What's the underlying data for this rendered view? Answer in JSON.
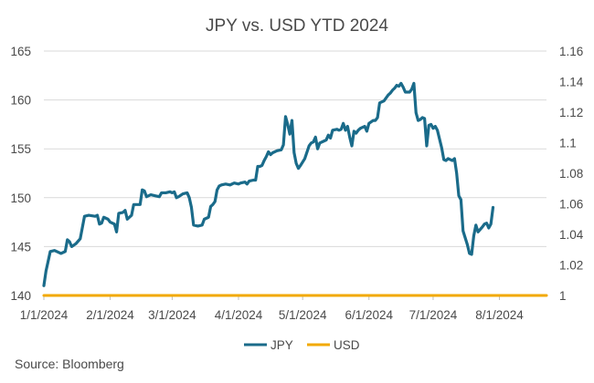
{
  "chart_data": {
    "type": "line",
    "title": "JPY vs. USD YTD 2024",
    "xlabel": "",
    "ylabel": "",
    "x_tick_labels": [
      "1/1/2024",
      "2/1/2024",
      "3/1/2024",
      "4/1/2024",
      "5/1/2024",
      "6/1/2024",
      "7/1/2024",
      "8/1/2024"
    ],
    "y_left_ticks": [
      "140",
      "145",
      "150",
      "155",
      "160",
      "165"
    ],
    "y_right_ticks": [
      "1",
      "1.02",
      "1.04",
      "1.06",
      "1.08",
      "1.1",
      "1.12",
      "1.14",
      "1.16"
    ],
    "ylim_left": [
      140,
      165
    ],
    "ylim_right": [
      1.0,
      1.16
    ],
    "x_days_range": [
      0,
      235
    ],
    "legend": [
      {
        "name": "JPY",
        "color": "#1a6b8a"
      },
      {
        "name": "USD",
        "color": "#f2a900"
      }
    ],
    "source": "Source: Bloomberg",
    "series": [
      {
        "name": "JPY",
        "axis": "left",
        "color": "#1a6b8a",
        "points": [
          [
            0,
            141.0
          ],
          [
            1,
            142.5
          ],
          [
            2,
            143.5
          ],
          [
            3,
            144.5
          ],
          [
            5,
            144.6
          ],
          [
            8,
            144.3
          ],
          [
            10,
            144.5
          ],
          [
            11,
            145.7
          ],
          [
            12,
            145.5
          ],
          [
            13,
            145.0
          ],
          [
            15,
            145.3
          ],
          [
            17,
            145.8
          ],
          [
            19,
            148.1
          ],
          [
            21,
            148.2
          ],
          [
            24,
            148.1
          ],
          [
            25,
            148.2
          ],
          [
            26,
            147.3
          ],
          [
            27,
            147.4
          ],
          [
            28,
            148.0
          ],
          [
            30,
            147.8
          ],
          [
            31,
            147.5
          ],
          [
            33,
            147.3
          ],
          [
            34,
            146.5
          ],
          [
            35,
            148.4
          ],
          [
            37,
            148.5
          ],
          [
            38,
            148.7
          ],
          [
            39,
            147.8
          ],
          [
            41,
            148.2
          ],
          [
            42,
            149.3
          ],
          [
            44,
            149.3
          ],
          [
            45,
            149.3
          ],
          [
            46,
            150.8
          ],
          [
            47,
            150.7
          ],
          [
            48,
            150.1
          ],
          [
            50,
            150.3
          ],
          [
            52,
            150.2
          ],
          [
            54,
            150.1
          ],
          [
            55,
            150.5
          ],
          [
            57,
            150.5
          ],
          [
            59,
            150.6
          ],
          [
            60,
            150.5
          ],
          [
            61,
            150.6
          ],
          [
            62,
            150.0
          ],
          [
            63,
            150.1
          ],
          [
            65,
            150.4
          ],
          [
            67,
            150.5
          ],
          [
            68,
            150.0
          ],
          [
            69,
            149.0
          ],
          [
            70,
            147.2
          ],
          [
            72,
            147.1
          ],
          [
            74,
            147.2
          ],
          [
            75,
            147.8
          ],
          [
            77,
            148.0
          ],
          [
            78,
            149.1
          ],
          [
            79,
            149.3
          ],
          [
            80,
            149.6
          ],
          [
            81,
            150.8
          ],
          [
            82,
            151.2
          ],
          [
            83,
            151.3
          ],
          [
            85,
            151.4
          ],
          [
            87,
            151.3
          ],
          [
            89,
            151.5
          ],
          [
            91,
            151.4
          ],
          [
            92,
            151.5
          ],
          [
            94,
            151.6
          ],
          [
            95,
            151.4
          ],
          [
            96,
            151.7
          ],
          [
            98,
            151.8
          ],
          [
            99,
            151.8
          ],
          [
            100,
            153.2
          ],
          [
            101,
            153.2
          ],
          [
            102,
            153.3
          ],
          [
            103,
            153.8
          ],
          [
            104,
            154.2
          ],
          [
            105,
            154.7
          ],
          [
            106,
            154.4
          ],
          [
            107,
            154.6
          ],
          [
            109,
            154.8
          ],
          [
            111,
            154.9
          ],
          [
            112,
            155.4
          ],
          [
            113,
            158.3
          ],
          [
            114,
            157.5
          ],
          [
            115,
            156.5
          ],
          [
            116,
            157.9
          ],
          [
            117,
            154.6
          ],
          [
            118,
            153.5
          ],
          [
            119,
            153.0
          ],
          [
            120,
            153.3
          ],
          [
            122,
            154.0
          ],
          [
            124,
            155.3
          ],
          [
            125,
            155.6
          ],
          [
            126,
            155.7
          ],
          [
            127,
            156.2
          ],
          [
            128,
            155.0
          ],
          [
            129,
            155.6
          ],
          [
            131,
            155.8
          ],
          [
            132,
            155.9
          ],
          [
            133,
            156.4
          ],
          [
            134,
            156.1
          ],
          [
            135,
            156.9
          ],
          [
            137,
            157.0
          ],
          [
            138,
            156.9
          ],
          [
            139,
            157.0
          ],
          [
            140,
            157.6
          ],
          [
            141,
            156.9
          ],
          [
            142,
            157.3
          ],
          [
            143,
            156.2
          ],
          [
            144,
            155.3
          ],
          [
            145,
            156.8
          ],
          [
            146,
            156.6
          ],
          [
            147,
            156.9
          ],
          [
            148,
            157.1
          ],
          [
            150,
            157.3
          ],
          [
            151,
            156.8
          ],
          [
            152,
            157.6
          ],
          [
            154,
            157.9
          ],
          [
            155,
            157.9
          ],
          [
            156,
            158.2
          ],
          [
            157,
            159.7
          ],
          [
            159,
            159.9
          ],
          [
            161,
            160.5
          ],
          [
            162,
            160.7
          ],
          [
            163,
            161.0
          ],
          [
            164,
            161.2
          ],
          [
            165,
            161.5
          ],
          [
            166,
            161.4
          ],
          [
            167,
            161.7
          ],
          [
            168,
            161.3
          ],
          [
            169,
            160.8
          ],
          [
            171,
            160.8
          ],
          [
            172,
            161.1
          ],
          [
            173,
            161.7
          ],
          [
            174,
            158.7
          ],
          [
            175,
            157.9
          ],
          [
            176,
            158.0
          ],
          [
            177,
            158.2
          ],
          [
            178,
            158.1
          ],
          [
            179,
            155.3
          ],
          [
            180,
            157.4
          ],
          [
            181,
            157.5
          ],
          [
            182,
            157.1
          ],
          [
            183,
            157.3
          ],
          [
            184,
            156.9
          ],
          [
            185,
            156.0
          ],
          [
            186,
            155.1
          ],
          [
            187,
            153.9
          ],
          [
            188,
            153.8
          ],
          [
            189,
            154.0
          ],
          [
            191,
            153.8
          ],
          [
            192,
            154.0
          ],
          [
            193,
            152.5
          ],
          [
            194,
            150.2
          ],
          [
            195,
            149.8
          ],
          [
            196,
            146.6
          ],
          [
            198,
            145.2
          ],
          [
            199,
            144.3
          ],
          [
            200,
            144.2
          ],
          [
            201,
            146.1
          ],
          [
            202,
            147.2
          ],
          [
            203,
            146.5
          ],
          [
            205,
            147.0
          ],
          [
            206,
            147.3
          ],
          [
            207,
            147.4
          ],
          [
            208,
            146.9
          ],
          [
            209,
            147.3
          ],
          [
            210,
            149.0
          ]
        ]
      },
      {
        "name": "USD",
        "axis": "right",
        "color": "#f2a900",
        "points": [
          [
            0,
            1.0
          ],
          [
            235,
            1.0
          ]
        ]
      }
    ]
  }
}
